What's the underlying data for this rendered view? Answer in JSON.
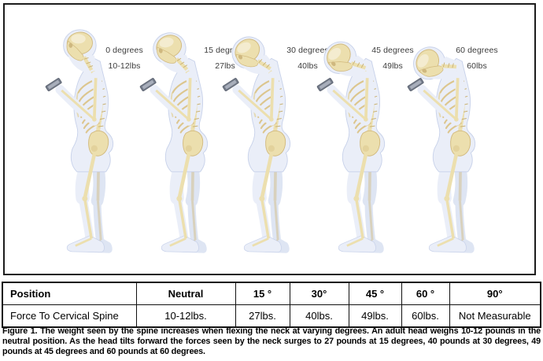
{
  "figure": {
    "illustrations": [
      {
        "degrees_label": "0 degrees",
        "force_label": "10-12lbs",
        "tilt_degrees": 0
      },
      {
        "degrees_label": "15 degrees",
        "force_label": "27lbs",
        "tilt_degrees": 15
      },
      {
        "degrees_label": "30 degrees",
        "force_label": "40lbs",
        "tilt_degrees": 30
      },
      {
        "degrees_label": "45 degrees",
        "force_label": "49lbs",
        "tilt_degrees": 45
      },
      {
        "degrees_label": "60 degrees",
        "force_label": "60lbs",
        "tilt_degrees": 60
      }
    ]
  },
  "table": {
    "header_row": [
      "Position",
      "Neutral",
      "15 °",
      "30°",
      "45 °",
      "60 °",
      "90°"
    ],
    "value_row": [
      "Force To Cervical Spine",
      "10-12lbs.",
      "27lbs.",
      "40lbs.",
      "49lbs.",
      "60lbs.",
      "Not Measurable"
    ]
  },
  "caption": "Figure 1. The weight seen by the spine increases when flexing the neck at varying degrees. An adult head weighs 10-12 pounds in the neutral position. As the head tilts forward the forces seen by the neck surges to 27 pounds at 15 degrees, 40 pounds at 30 degrees, 49 pounds at 45 degrees and 60 pounds at 60 degrees.",
  "colors": {
    "bone": "#ecdfae",
    "bone_shade": "#d2ba7e",
    "body_flesh": "#eaeef8",
    "body_outline": "#c8d2ea",
    "phone": "#747b89",
    "table_border": "#111111",
    "label_text": "#3c3c3c"
  }
}
